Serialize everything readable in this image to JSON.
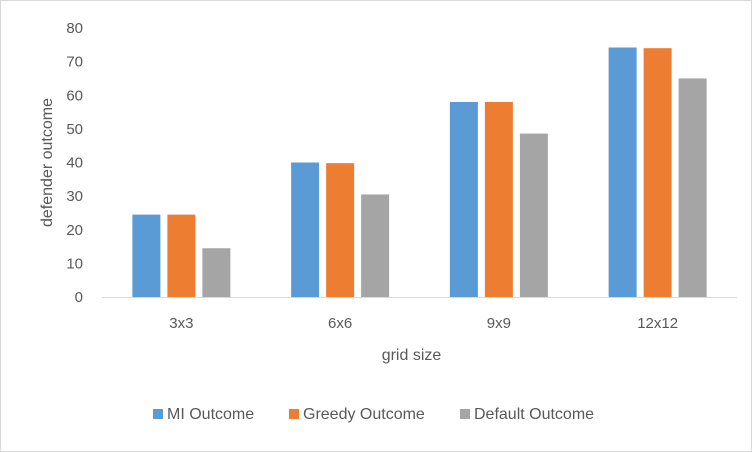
{
  "chart_data": {
    "type": "bar",
    "title": "",
    "xlabel": "grid size",
    "ylabel": "defender outcome",
    "categories": [
      "3x3",
      "6x6",
      "9x9",
      "12x12"
    ],
    "series": [
      {
        "name": "MI Outcome",
        "color": "#5b9bd5",
        "values": [
          24.5,
          40,
          58,
          74.2
        ]
      },
      {
        "name": "Greedy Outcome",
        "color": "#ed7d31",
        "values": [
          24.5,
          39.8,
          58,
          74
        ]
      },
      {
        "name": "Default Outcome",
        "color": "#a5a5a5",
        "values": [
          14.5,
          30.5,
          48.6,
          65
        ]
      }
    ],
    "ylim": [
      0,
      80
    ],
    "yticks": [
      "0",
      "10",
      "20",
      "30",
      "40",
      "50",
      "60",
      "70",
      "80"
    ],
    "grid": false,
    "legend_position": "bottom"
  }
}
